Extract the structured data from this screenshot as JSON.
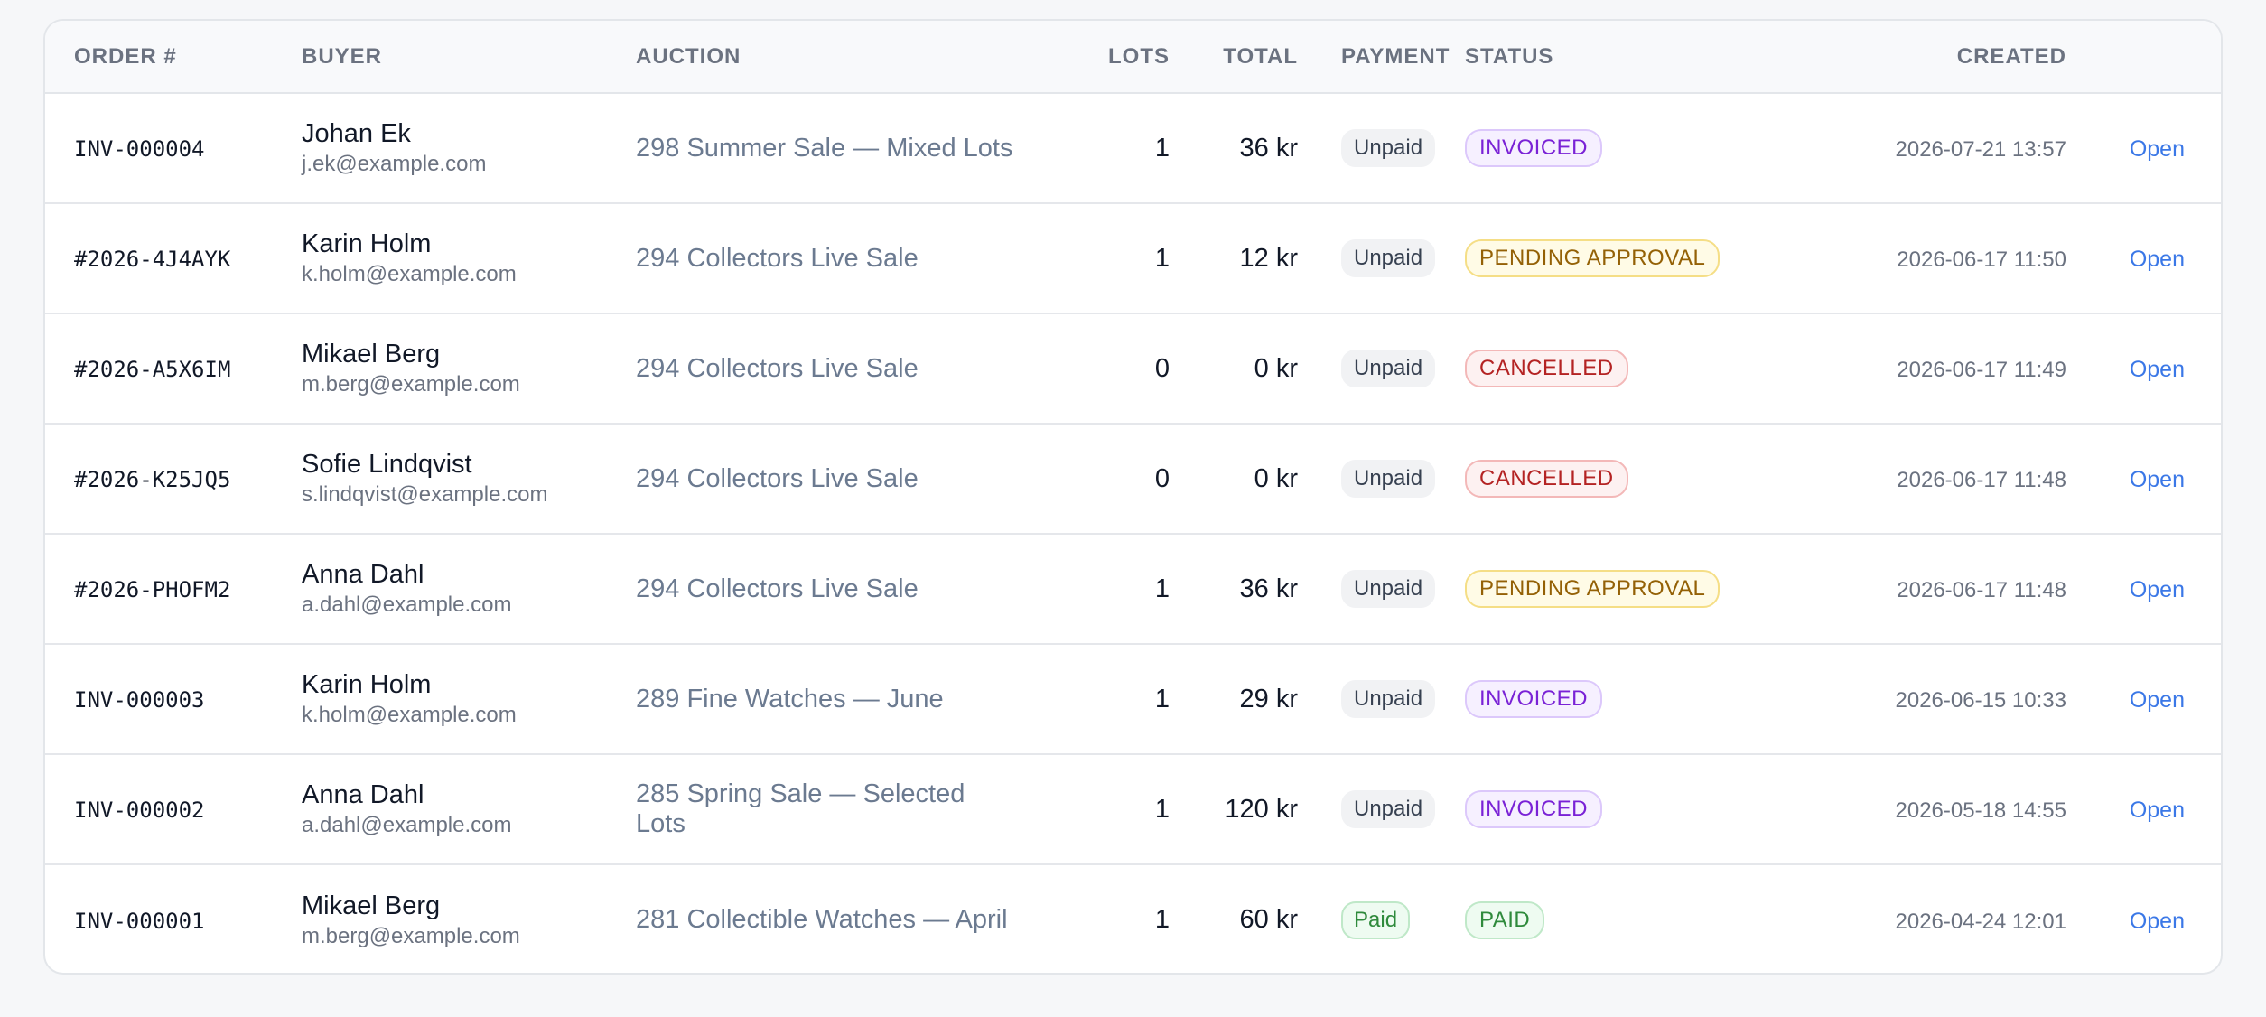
{
  "headers": {
    "order": "ORDER #",
    "buyer": "BUYER",
    "auction": "AUCTION",
    "lots": "LOTS",
    "total": "TOTAL",
    "payment": "PAYMENT",
    "status": "STATUS",
    "created": "CREATED"
  },
  "rows": [
    {
      "order": "INV-000004",
      "buyer_name": "Johan Ek",
      "buyer_email": "j.ek@example.com",
      "auction": "298 Summer Sale — Mixed Lots",
      "lots": "1",
      "total": "36 kr",
      "payment": "Unpaid",
      "status": "INVOICED",
      "created": "2026-07-21 13:57",
      "action": "Open"
    },
    {
      "order": "#2026-4J4AYK",
      "buyer_name": "Karin Holm",
      "buyer_email": "k.holm@example.com",
      "auction": "294 Collectors Live Sale",
      "lots": "1",
      "total": "12 kr",
      "payment": "Unpaid",
      "status": "PENDING APPROVAL",
      "created": "2026-06-17 11:50",
      "action": "Open"
    },
    {
      "order": "#2026-A5X6IM",
      "buyer_name": "Mikael Berg",
      "buyer_email": "m.berg@example.com",
      "auction": "294 Collectors Live Sale",
      "lots": "0",
      "total": "0 kr",
      "payment": "Unpaid",
      "status": "CANCELLED",
      "created": "2026-06-17 11:49",
      "action": "Open"
    },
    {
      "order": "#2026-K25JQ5",
      "buyer_name": "Sofie Lindqvist",
      "buyer_email": "s.lindqvist@example.com",
      "auction": "294 Collectors Live Sale",
      "lots": "0",
      "total": "0 kr",
      "payment": "Unpaid",
      "status": "CANCELLED",
      "created": "2026-06-17 11:48",
      "action": "Open"
    },
    {
      "order": "#2026-PHOFM2",
      "buyer_name": "Anna Dahl",
      "buyer_email": "a.dahl@example.com",
      "auction": "294 Collectors Live Sale",
      "lots": "1",
      "total": "36 kr",
      "payment": "Unpaid",
      "status": "PENDING APPROVAL",
      "created": "2026-06-17 11:48",
      "action": "Open"
    },
    {
      "order": "INV-000003",
      "buyer_name": "Karin Holm",
      "buyer_email": "k.holm@example.com",
      "auction": "289 Fine Watches — June",
      "lots": "1",
      "total": "29 kr",
      "payment": "Unpaid",
      "status": "INVOICED",
      "created": "2026-06-15 10:33",
      "action": "Open"
    },
    {
      "order": "INV-000002",
      "buyer_name": "Anna Dahl",
      "buyer_email": "a.dahl@example.com",
      "auction": "285 Spring Sale — Selected Lots",
      "lots": "1",
      "total": "120 kr",
      "payment": "Unpaid",
      "status": "INVOICED",
      "created": "2026-05-18 14:55",
      "action": "Open"
    },
    {
      "order": "INV-000001",
      "buyer_name": "Mikael Berg",
      "buyer_email": "m.berg@example.com",
      "auction": "281 Collectible Watches — April",
      "lots": "1",
      "total": "60 kr",
      "payment": "Paid",
      "status": "PAID",
      "created": "2026-04-24 12:01",
      "action": "Open"
    }
  ],
  "colors": {
    "accent_link": "#3b78e7",
    "invoiced": "#7a22d6",
    "pending_approval": "#946106",
    "cancelled": "#b42323",
    "paid": "#2f8a3c"
  }
}
